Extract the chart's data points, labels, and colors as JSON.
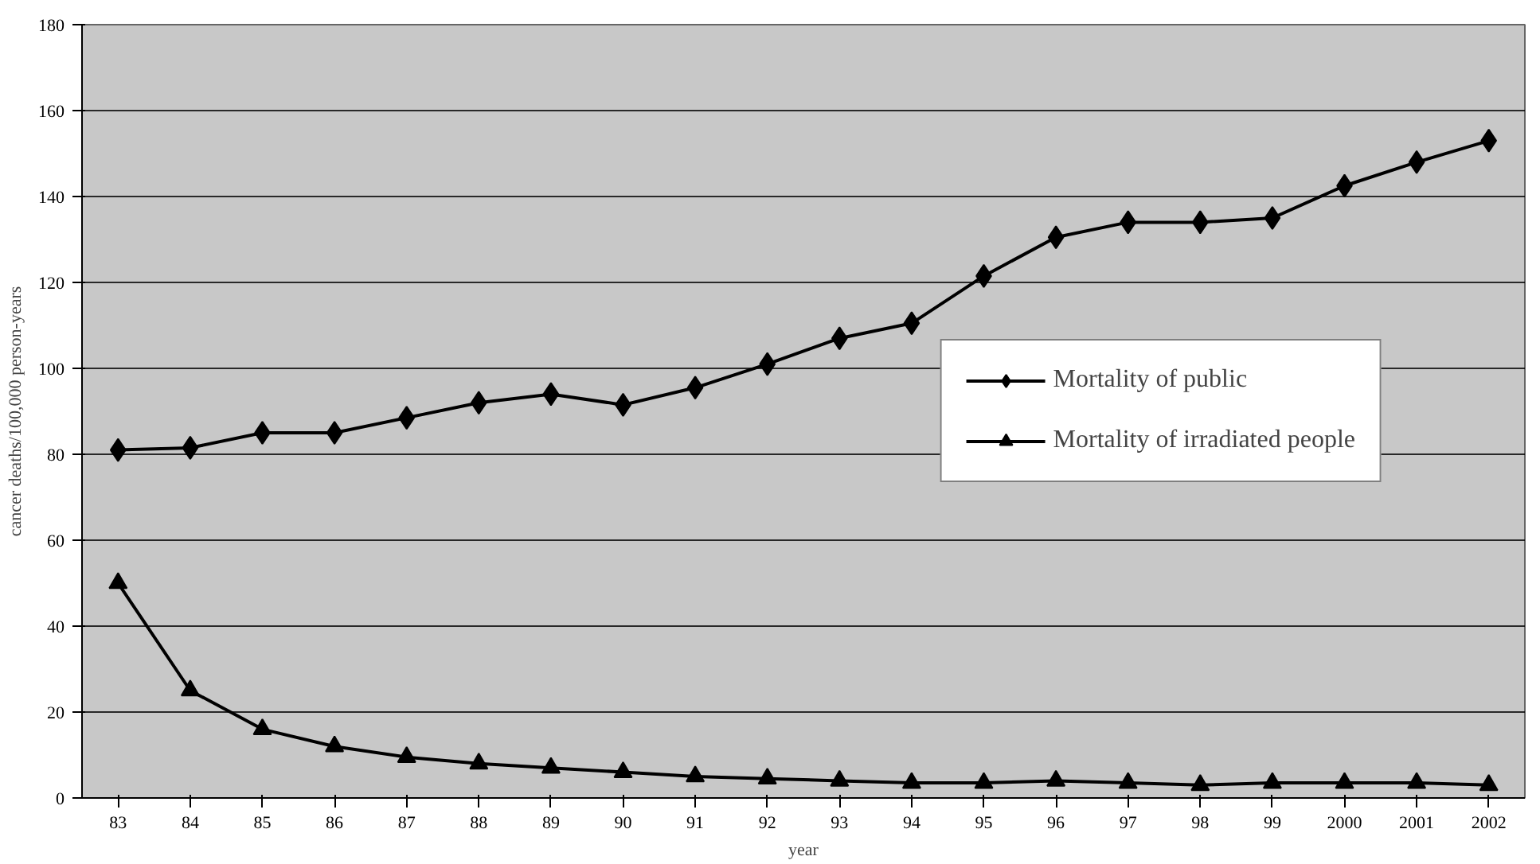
{
  "chart_data": {
    "type": "line",
    "xlabel": "year",
    "ylabel": "cancer deaths/100,000 person-years",
    "categories": [
      "83",
      "84",
      "85",
      "86",
      "87",
      "88",
      "89",
      "90",
      "91",
      "92",
      "93",
      "94",
      "95",
      "96",
      "97",
      "98",
      "99",
      "2000",
      "2001",
      "2002"
    ],
    "series": [
      {
        "name": "Mortality of public",
        "color": "#000000",
        "marker": "diamond",
        "values": [
          81,
          81.5,
          85,
          85,
          88.5,
          92,
          94,
          91.5,
          95.5,
          101,
          107,
          110.5,
          121.5,
          130.5,
          134,
          134,
          135,
          142.5,
          148,
          153
        ]
      },
      {
        "name": "Mortality of irradiated people",
        "color": "#000000",
        "marker": "triangle",
        "values": [
          50,
          25,
          16,
          12,
          9.5,
          8,
          7,
          6,
          5,
          4.5,
          4,
          3.5,
          3.5,
          4,
          3.5,
          3,
          3.5,
          3.5,
          3.5,
          3
        ]
      }
    ],
    "ylim": [
      0,
      180
    ],
    "yticks": [
      0,
      20,
      40,
      60,
      80,
      100,
      120,
      140,
      160,
      180
    ],
    "grid": "y",
    "legend": "right",
    "line_style": "solid"
  }
}
